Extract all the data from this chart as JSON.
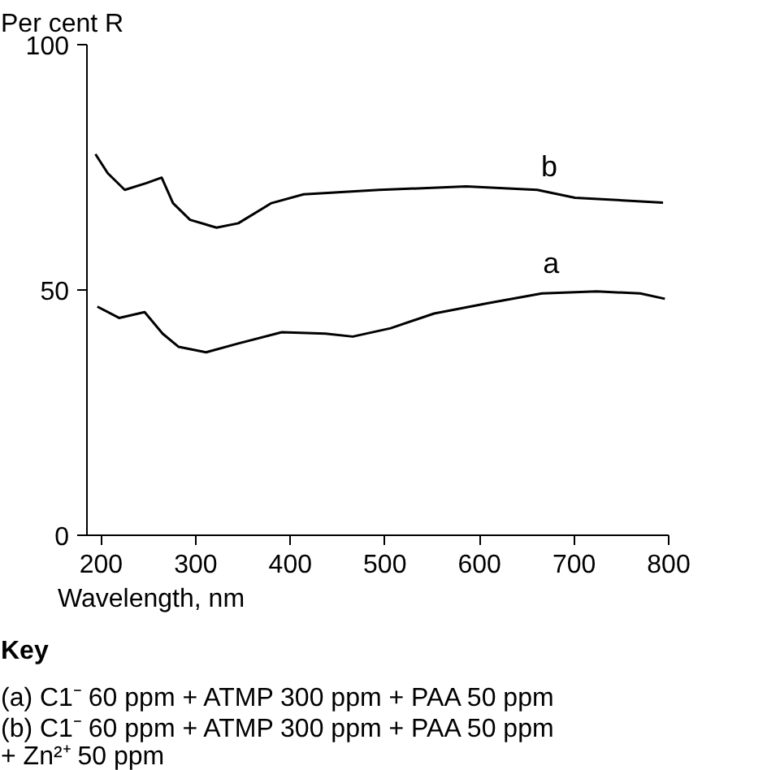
{
  "chart_data": {
    "type": "line",
    "ylabel": "Per cent R",
    "xlabel": "Wavelength, nm",
    "xlim": [
      185,
      800
    ],
    "ylim": [
      0,
      100
    ],
    "xticks": [
      200,
      300,
      400,
      500,
      600,
      700,
      800
    ],
    "yticks": [
      0,
      50,
      100
    ],
    "grid": false,
    "legend": false,
    "marker": "none",
    "line_style": "solid",
    "series": [
      {
        "name": "b",
        "color": "#000000",
        "x": [
          194,
          207,
          225,
          248,
          264,
          276,
          294,
          322,
          345,
          380,
          414,
          494,
          586,
          661,
          701,
          794
        ],
        "values": [
          77.7,
          73.8,
          70.4,
          71.8,
          72.9,
          67.7,
          64.3,
          62.7,
          63.6,
          67.7,
          69.5,
          70.4,
          71.1,
          70.4,
          68.8,
          67.8
        ]
      },
      {
        "name": "a",
        "color": "#000000",
        "x": [
          196,
          219,
          246,
          265,
          282,
          311,
          345,
          391,
          437,
          466,
          506,
          552,
          609,
          666,
          724,
          770,
          796
        ],
        "values": [
          46.6,
          44.3,
          45.5,
          41.1,
          38.4,
          37.3,
          39.1,
          41.4,
          41.1,
          40.5,
          42.2,
          45.2,
          47.3,
          49.3,
          49.7,
          49.3,
          48.2
        ]
      }
    ],
    "annotations": [
      "Key",
      "(a) C1⁻ 60 ppm + ATMP 300 ppm + PAA 50 ppm",
      "(b) C1⁻ 60 ppm + ATMP 300 ppm + PAA 50 ppm\n     + Zn²⁺ 50 ppm"
    ]
  }
}
